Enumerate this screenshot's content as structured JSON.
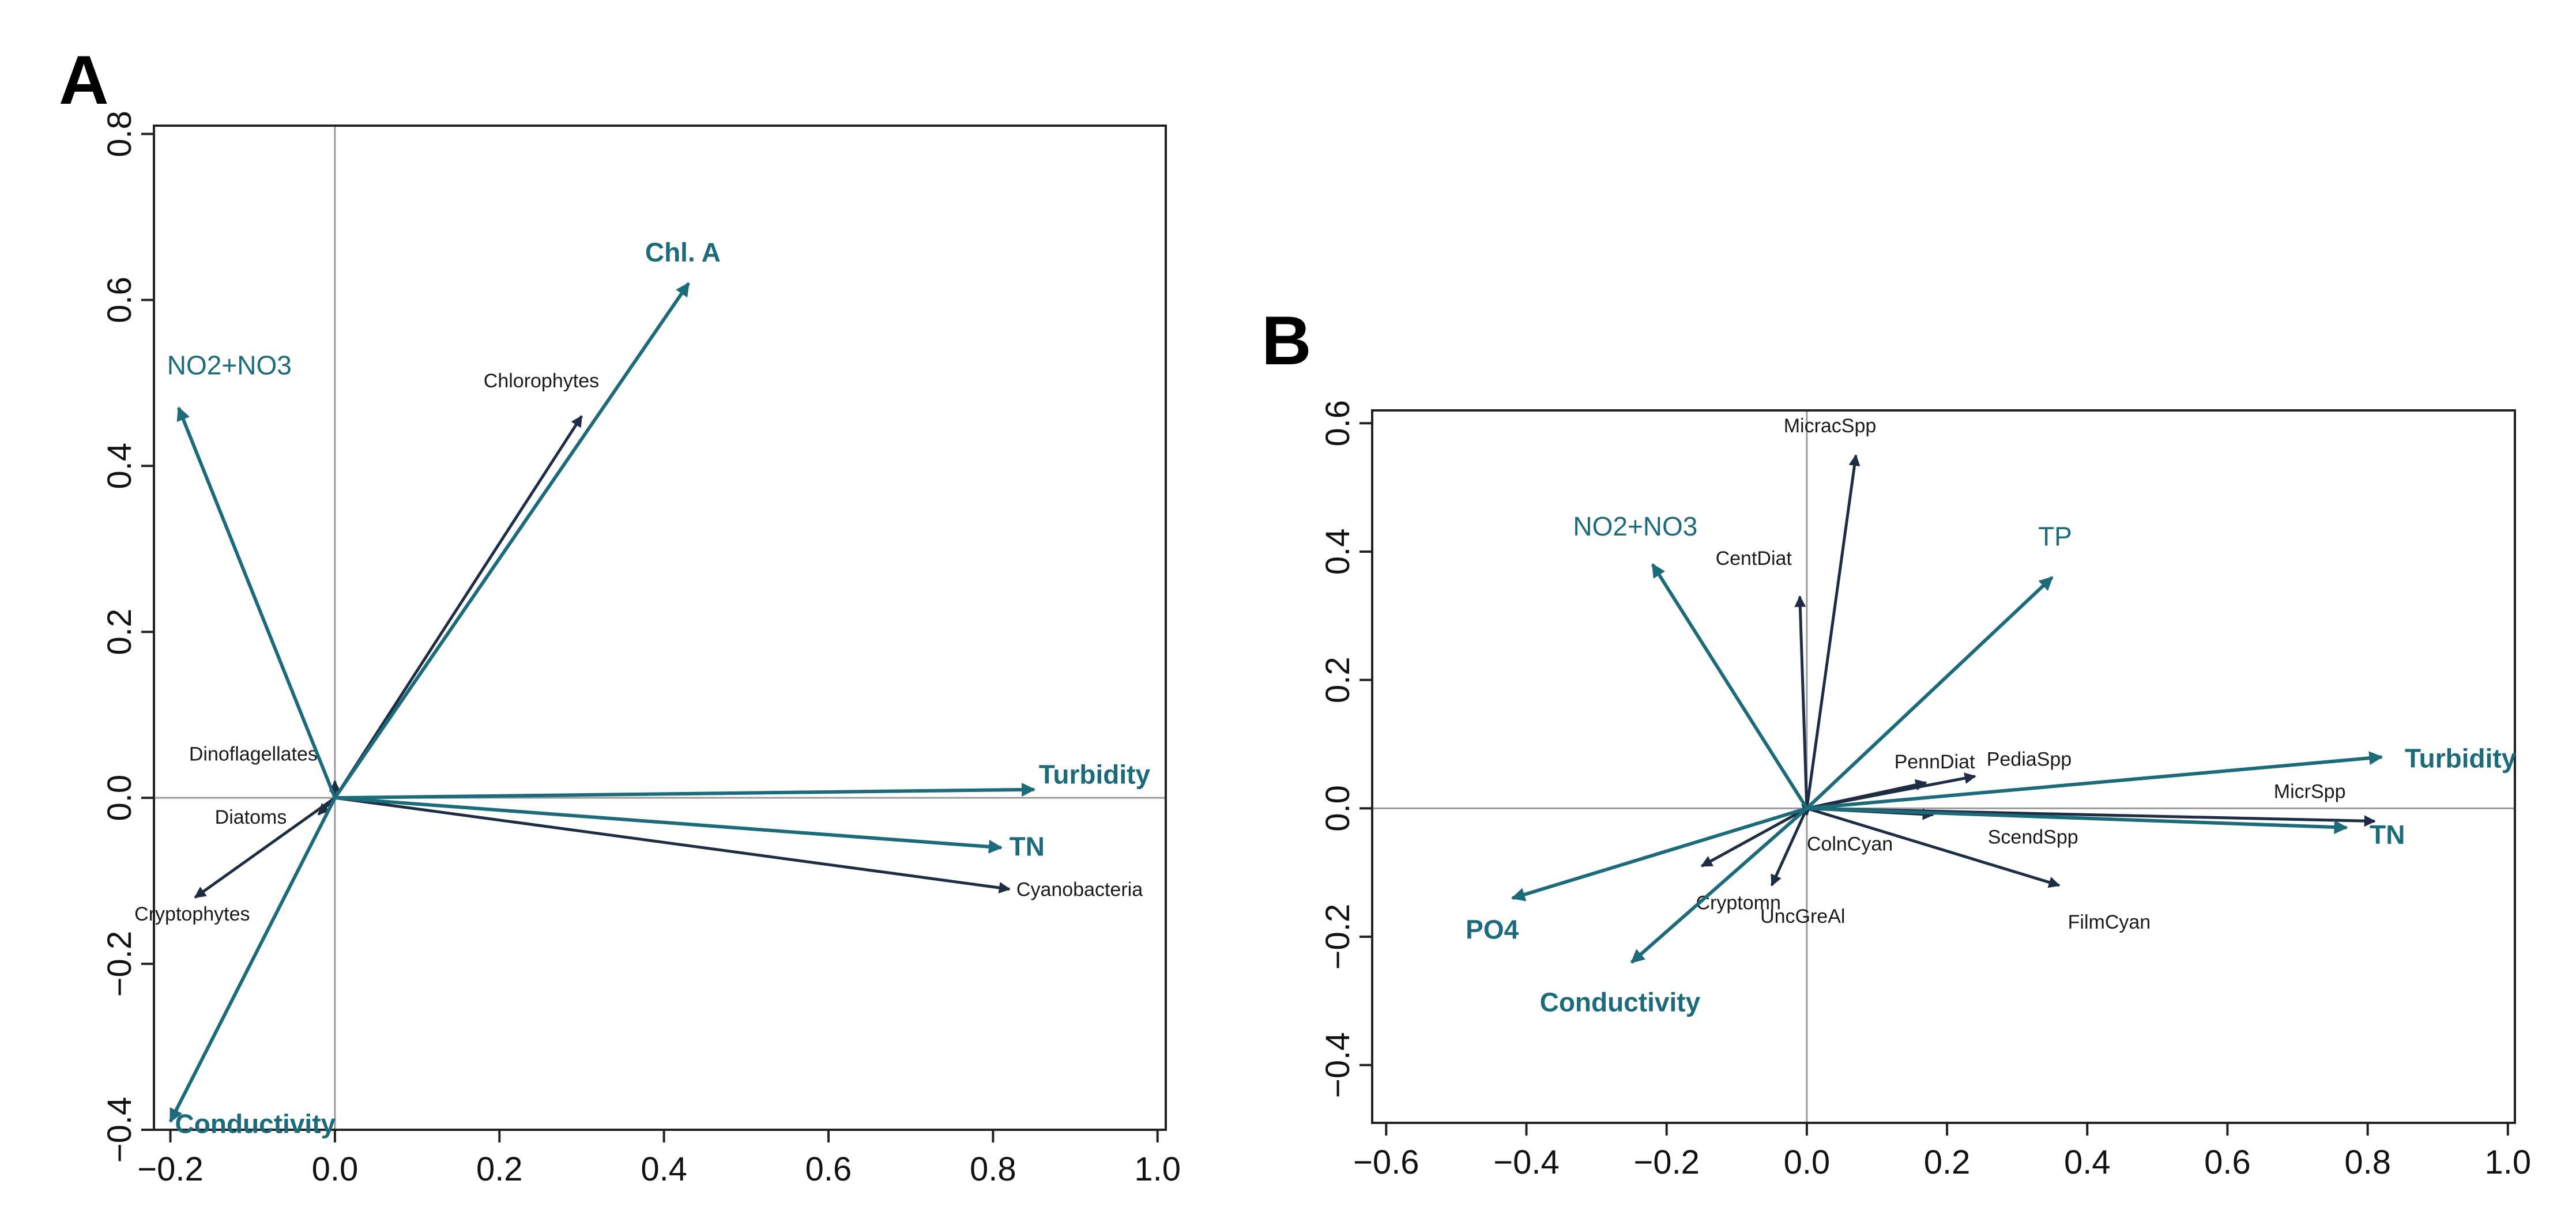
{
  "colors": {
    "environment": "#1b6b7a",
    "species": "#1f2d44",
    "zero_line": "#9a9a9a",
    "frame": "#222222"
  },
  "chart_data": [
    {
      "panel": "A",
      "type": "biplot",
      "title": "",
      "xlabel": "",
      "ylabel": "",
      "xlim": [
        -0.22,
        1.01
      ],
      "ylim": [
        -0.4,
        0.81
      ],
      "x_ticks": [
        -0.2,
        0.0,
        0.2,
        0.4,
        0.6,
        0.8,
        1.0
      ],
      "y_ticks": [
        -0.4,
        -0.2,
        0.0,
        0.2,
        0.4,
        0.6,
        0.8
      ],
      "x_tick_labels": [
        "−0.2",
        "0.0",
        "0.2",
        "0.4",
        "0.6",
        "0.8",
        "1.0"
      ],
      "y_tick_labels": [
        "−0.4",
        "−0.2",
        "0.0",
        "0.2",
        "0.4",
        "0.6",
        "0.8"
      ],
      "grid": false,
      "zero_lines": true,
      "environmental_vectors": [
        {
          "label": "Chl. A",
          "x": 0.43,
          "y": 0.62
        },
        {
          "label": "NO2+NO3",
          "x": -0.19,
          "y": 0.47
        },
        {
          "label": "Turbidity",
          "x": 0.85,
          "y": 0.01
        },
        {
          "label": "TN",
          "x": 0.81,
          "y": -0.06
        },
        {
          "label": "Conductivity",
          "x": -0.2,
          "y": -0.39
        }
      ],
      "species_vectors": [
        {
          "label": "Chlorophytes",
          "x": 0.3,
          "y": 0.46
        },
        {
          "label": "Dinoflagellates",
          "x": 0.0,
          "y": 0.02
        },
        {
          "label": "Diatoms",
          "x": -0.02,
          "y": -0.02
        },
        {
          "label": "Cryptophytes",
          "x": -0.17,
          "y": -0.12
        },
        {
          "label": "Cyanobacteria",
          "x": 0.82,
          "y": -0.11
        }
      ]
    },
    {
      "panel": "B",
      "type": "biplot",
      "title": "",
      "xlabel": "",
      "ylabel": "",
      "xlim": [
        -0.62,
        1.01
      ],
      "ylim": [
        -0.49,
        0.62
      ],
      "x_ticks": [
        -0.6,
        -0.4,
        -0.2,
        0.0,
        0.2,
        0.4,
        0.6,
        0.8,
        1.0
      ],
      "y_ticks": [
        -0.4,
        -0.2,
        0.0,
        0.2,
        0.4,
        0.6
      ],
      "x_tick_labels": [
        "−0.6",
        "−0.4",
        "−0.2",
        "0.0",
        "0.2",
        "0.4",
        "0.6",
        "0.8",
        "1.0"
      ],
      "y_tick_labels": [
        "−0.4",
        "−0.2",
        "0.0",
        "0.2",
        "0.4",
        "0.6"
      ],
      "grid": false,
      "zero_lines": true,
      "environmental_vectors": [
        {
          "label": "TP",
          "x": 0.35,
          "y": 0.36
        },
        {
          "label": "NO2+NO3",
          "x": -0.22,
          "y": 0.38
        },
        {
          "label": "Turbidity",
          "x": 0.82,
          "y": 0.08
        },
        {
          "label": "TN",
          "x": 0.77,
          "y": -0.03
        },
        {
          "label": "PO4",
          "x": -0.42,
          "y": -0.14
        },
        {
          "label": "Conductivity",
          "x": -0.25,
          "y": -0.24
        }
      ],
      "species_vectors": [
        {
          "label": "MicracSpp",
          "x": 0.07,
          "y": 0.55
        },
        {
          "label": "CentDiat",
          "x": -0.01,
          "y": 0.33
        },
        {
          "label": "PediaSpp",
          "x": 0.24,
          "y": 0.05
        },
        {
          "label": "PennDiat",
          "x": 0.17,
          "y": 0.04
        },
        {
          "label": "MicrSpp",
          "x": 0.81,
          "y": -0.02
        },
        {
          "label": "ScendSpp",
          "x": 0.18,
          "y": -0.01
        },
        {
          "label": "ColnCyan",
          "x": 0.0,
          "y": -0.01
        },
        {
          "label": "FilmCyan",
          "x": 0.36,
          "y": -0.12
        },
        {
          "label": "UncGreAl",
          "x": -0.05,
          "y": -0.12
        },
        {
          "label": "Cryptomn",
          "x": -0.15,
          "y": -0.09
        }
      ]
    }
  ]
}
